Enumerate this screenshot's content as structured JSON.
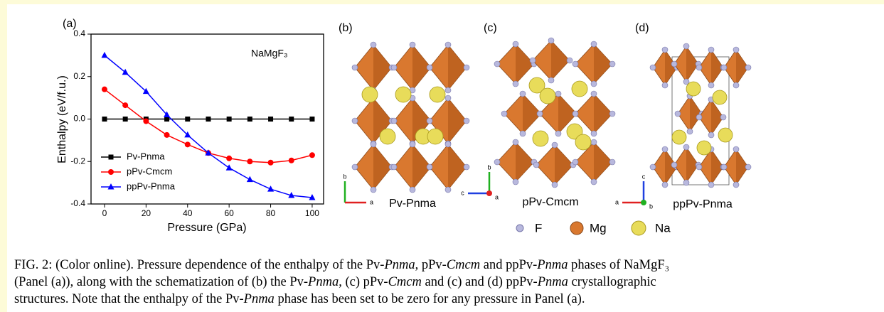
{
  "chart_data": {
    "type": "line",
    "panel_label": "(a)",
    "annotation": "NaMgF₃",
    "xlabel": "Pressure (GPa)",
    "ylabel": "Enthalpy (eV/f.u.)",
    "x": [
      0,
      10,
      20,
      30,
      40,
      50,
      60,
      70,
      80,
      90,
      100
    ],
    "series": [
      {
        "name": "Pv-Pnma",
        "color": "#000000",
        "marker": "square",
        "values": [
          0,
          0,
          0,
          0,
          0,
          0,
          0,
          0,
          0,
          0,
          0
        ]
      },
      {
        "name": "pPv-Cmcm",
        "color": "#ff0000",
        "marker": "circle",
        "values": [
          0.14,
          0.065,
          -0.01,
          -0.075,
          -0.12,
          -0.16,
          -0.185,
          -0.2,
          -0.205,
          -0.195,
          -0.17
        ]
      },
      {
        "name": "ppPv-Pnma",
        "color": "#0000ff",
        "marker": "triangle",
        "values": [
          0.3,
          0.22,
          0.13,
          0.02,
          -0.075,
          -0.16,
          -0.23,
          -0.285,
          -0.33,
          -0.36,
          -0.37
        ]
      }
    ],
    "xlim": [
      -6.5,
      105.5
    ],
    "xticks": [
      0,
      20,
      40,
      60,
      80,
      100
    ],
    "ylim": [
      -0.4,
      0.4
    ],
    "yticks": [
      -0.4,
      -0.2,
      {
        "value": 0,
        "label": "0.0"
      },
      0.2,
      0.4
    ],
    "legend": "lower-left"
  },
  "panels": [
    {
      "label": "(b)",
      "name": "Pv-Pnma",
      "axes": [
        "b",
        "a"
      ]
    },
    {
      "label": "(c)",
      "name": "pPv-Cmcm",
      "axes": [
        "b",
        "c",
        "a"
      ]
    },
    {
      "label": "(d)",
      "name": "ppPv-Pnma",
      "axes": [
        "c",
        "a",
        "b"
      ]
    }
  ],
  "atoms": [
    "F",
    "Mg",
    "Na"
  ],
  "caption": [
    [
      "FIG. 2: (Color online). Pressure dependence of the enthalpy of the Pv-",
      "Pnma",
      ", pPv-",
      "Cmcm",
      " and ppPv-",
      "Pnma",
      " phases of NaMgF₃"
    ],
    [
      "(Panel (a)), along with the schematization of (b) the Pv-",
      "Pnma",
      ", (c) pPv-",
      "Cmcm",
      " and (c) and (d) ppPv-",
      "Pnma",
      " crystallographic"
    ],
    [
      "structures. Note that the enthalpy of the Pv-",
      "Pnma",
      " phase has been set to be zero for any pressure in Panel (a)."
    ]
  ]
}
